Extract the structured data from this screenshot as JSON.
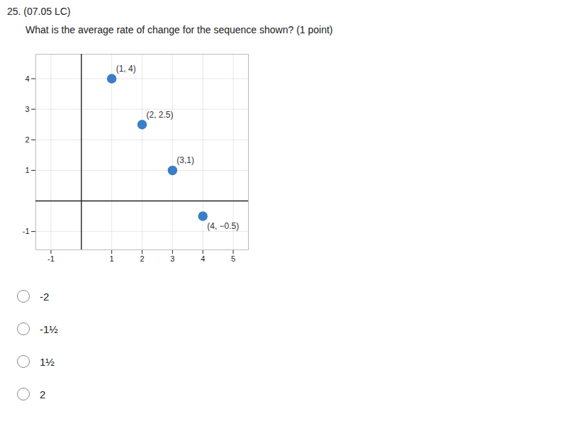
{
  "chart_data": {
    "type": "scatter",
    "title": "25. (07.05 LC)",
    "subtitle": "What is the average rate of change for the sequence shown? (1 point)",
    "x": [
      1,
      2,
      3,
      4
    ],
    "values": [
      4,
      2.5,
      1,
      -0.5
    ],
    "labels": [
      "(1, 4)",
      "(2, 2.5)",
      "(3,1)",
      "(4, −0.5)"
    ],
    "color": "#3a7ec8",
    "xlim": [
      -1.5,
      5.5
    ],
    "ylim": [
      -1.6,
      4.8
    ],
    "xticks": [
      -1,
      1,
      2,
      3,
      4,
      5
    ],
    "yticks": [
      -1,
      1,
      2,
      3,
      4
    ],
    "grid": true,
    "annotations": [
      "-2",
      "-1½",
      "1½",
      "2"
    ]
  }
}
